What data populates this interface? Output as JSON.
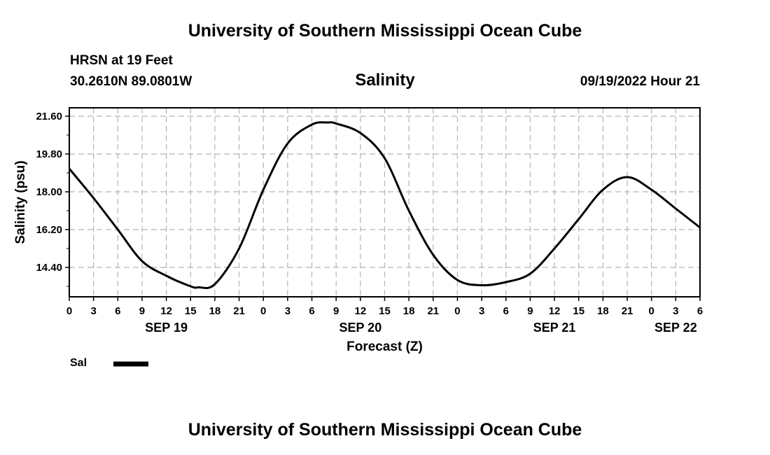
{
  "header": {
    "title_top": "University of Southern Mississippi Ocean Cube",
    "station": "HRSN at 19 Feet",
    "coords": "30.2610N  89.0801W",
    "chart_title": "Salinity",
    "datetime": "09/19/2022 Hour 21",
    "title_bottom": "University of Southern Mississippi Ocean Cube"
  },
  "chart_data": {
    "type": "line",
    "title": "Salinity",
    "xlabel": "Forecast (Z)",
    "ylabel": "Salinity (psu)",
    "ylim": [
      13.0,
      22.0
    ],
    "yticks": [
      14.4,
      16.2,
      18.0,
      19.8,
      21.6
    ],
    "ytick_labels": [
      "14.40",
      "16.20",
      "18.00",
      "19.80",
      "21.60"
    ],
    "xlim": [
      0,
      78
    ],
    "xticks": [
      0,
      3,
      6,
      9,
      12,
      15,
      18,
      21,
      24,
      27,
      30,
      33,
      36,
      39,
      42,
      45,
      48,
      51,
      54,
      57,
      60,
      63,
      66,
      69,
      72,
      75,
      78
    ],
    "xtick_labels": [
      "0",
      "3",
      "6",
      "9",
      "12",
      "15",
      "18",
      "21",
      "0",
      "3",
      "6",
      "9",
      "12",
      "15",
      "18",
      "21",
      "0",
      "3",
      "6",
      "9",
      "12",
      "15",
      "18",
      "21",
      "0",
      "3",
      "6"
    ],
    "day_labels": [
      {
        "x": 12,
        "label": "SEP 19"
      },
      {
        "x": 36,
        "label": "SEP 20"
      },
      {
        "x": 60,
        "label": "SEP 21"
      },
      {
        "x": 75,
        "label": "SEP 22"
      }
    ],
    "grid": true,
    "series": [
      {
        "name": "Sal",
        "x": [
          0,
          3,
          6,
          9,
          12,
          15,
          16,
          18,
          21,
          24,
          27,
          30,
          32,
          33,
          36,
          39,
          42,
          45,
          48,
          51,
          54,
          57,
          60,
          63,
          66,
          69,
          72,
          75,
          78
        ],
        "y": [
          19.1,
          17.7,
          16.2,
          14.7,
          14.0,
          13.5,
          13.45,
          13.6,
          15.3,
          18.1,
          20.3,
          21.2,
          21.3,
          21.25,
          20.8,
          19.6,
          17.1,
          15.0,
          13.8,
          13.55,
          13.7,
          14.1,
          15.3,
          16.7,
          18.1,
          18.7,
          18.1,
          17.2,
          16.3
        ]
      }
    ]
  },
  "legend": {
    "label": "Sal"
  }
}
